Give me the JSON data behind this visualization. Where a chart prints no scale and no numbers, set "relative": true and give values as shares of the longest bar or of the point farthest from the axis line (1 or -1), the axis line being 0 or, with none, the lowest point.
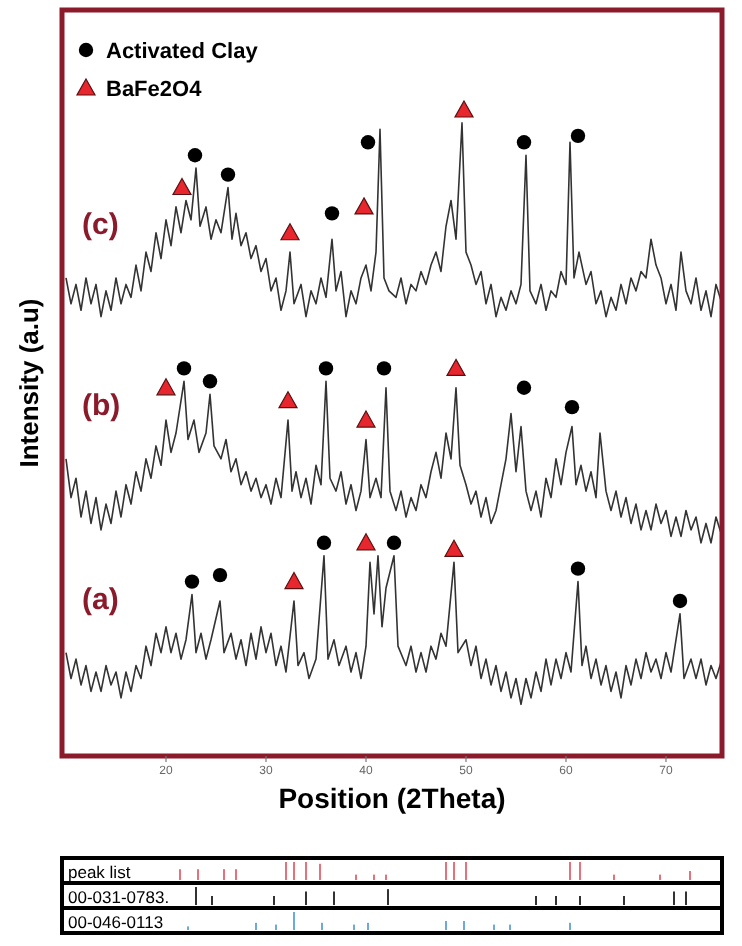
{
  "chart_data": [
    {
      "type": "line",
      "xlabel": "Position (2Theta)",
      "ylabel": "Intensity (a.u)",
      "relative": true,
      "xlim": [
        9.6,
        75.6
      ],
      "xticks": [
        20,
        30,
        40,
        50,
        60,
        70
      ],
      "grid": false,
      "legend": "top left",
      "line_style": "solid",
      "series": [
        {
          "name": "(c)",
          "color": "#333333",
          "marker": "none",
          "x": [
            10,
            10.5,
            11,
            11.5,
            12,
            12.5,
            13,
            13.5,
            14,
            14.5,
            15,
            15.5,
            16,
            16.5,
            17,
            17.5,
            18,
            18.5,
            19,
            19.5,
            20,
            20.5,
            21,
            21.5,
            22,
            22.5,
            23,
            23.4,
            24,
            24.5,
            25,
            25.5,
            26.2,
            26.6,
            27,
            27.5,
            28,
            28.5,
            29,
            29.5,
            30,
            30.5,
            31,
            31.5,
            32,
            32.4,
            32.8,
            33.5,
            34,
            34.5,
            35,
            35.5,
            36,
            36.6,
            37,
            37.5,
            38,
            38.5,
            39,
            39.5,
            40,
            40.5,
            41,
            41.4,
            41.8,
            42.3,
            43,
            43.5,
            44,
            44.5,
            45,
            45.5,
            46,
            46.5,
            47,
            47.5,
            48,
            48.5,
            49,
            49.6,
            50,
            50.5,
            51,
            51.5,
            52,
            52.5,
            53,
            53.5,
            54,
            54.5,
            55,
            55.5,
            56,
            56.4,
            57,
            57.5,
            58,
            58.5,
            59,
            59.5,
            60,
            60.4,
            60.8,
            61.3,
            62,
            62.5,
            63,
            63.5,
            64,
            64.5,
            65,
            65.5,
            66,
            66.5,
            67,
            67.5,
            68,
            68.5,
            69,
            69.5,
            70,
            70.5,
            71,
            71.5,
            72,
            72.5,
            73,
            73.5,
            74,
            74.5,
            75,
            75.6
          ],
          "values": [
            0.74,
            0.7,
            0.73,
            0.69,
            0.74,
            0.7,
            0.73,
            0.68,
            0.72,
            0.69,
            0.74,
            0.7,
            0.73,
            0.71,
            0.76,
            0.72,
            0.78,
            0.75,
            0.81,
            0.77,
            0.83,
            0.79,
            0.85,
            0.81,
            0.86,
            0.83,
            0.91,
            0.82,
            0.85,
            0.8,
            0.83,
            0.81,
            0.88,
            0.8,
            0.84,
            0.79,
            0.81,
            0.77,
            0.79,
            0.75,
            0.77,
            0.72,
            0.74,
            0.69,
            0.72,
            0.78,
            0.7,
            0.73,
            0.68,
            0.72,
            0.7,
            0.74,
            0.71,
            0.8,
            0.72,
            0.75,
            0.68,
            0.72,
            0.7,
            0.74,
            0.76,
            0.72,
            0.78,
            0.97,
            0.74,
            0.72,
            0.71,
            0.74,
            0.7,
            0.73,
            0.72,
            0.75,
            0.73,
            0.76,
            0.78,
            0.75,
            0.82,
            0.86,
            0.8,
            0.98,
            0.78,
            0.76,
            0.73,
            0.75,
            0.7,
            0.73,
            0.68,
            0.71,
            0.69,
            0.72,
            0.7,
            0.73,
            0.93,
            0.72,
            0.7,
            0.73,
            0.69,
            0.72,
            0.71,
            0.75,
            0.73,
            0.95,
            0.74,
            0.78,
            0.73,
            0.75,
            0.7,
            0.72,
            0.68,
            0.71,
            0.69,
            0.73,
            0.7,
            0.74,
            0.72,
            0.75,
            0.74,
            0.8,
            0.76,
            0.74,
            0.7,
            0.73,
            0.69,
            0.78,
            0.72,
            0.7,
            0.74,
            0.69,
            0.72,
            0.68,
            0.73,
            0.7
          ]
        },
        {
          "name": "(b)",
          "color": "#333333",
          "marker": "none",
          "x": [
            10,
            10.5,
            11,
            11.5,
            12,
            12.5,
            13,
            13.5,
            14,
            14.5,
            15,
            15.5,
            16,
            16.5,
            17,
            17.5,
            18,
            18.5,
            19,
            19.5,
            20,
            20.5,
            21,
            21.8,
            22.2,
            22.8,
            23.3,
            24,
            24.4,
            24.8,
            25.5,
            26,
            26.5,
            27,
            27.5,
            28,
            28.5,
            29,
            29.5,
            30,
            30.5,
            31,
            31.5,
            32.2,
            32.6,
            33,
            33.5,
            34,
            34.5,
            35,
            35.5,
            36,
            36.4,
            37,
            37.5,
            38,
            38.5,
            39,
            39.5,
            40,
            40.4,
            41,
            41.5,
            42,
            42.4,
            43,
            43.5,
            44,
            44.5,
            45,
            45.5,
            46,
            46.5,
            47,
            47.5,
            48,
            48.5,
            49,
            49.4,
            50,
            50.5,
            51,
            51.5,
            52,
            52.5,
            53,
            53.5,
            54,
            54.5,
            55,
            55.5,
            56,
            56.5,
            57,
            57.5,
            58,
            58.5,
            59,
            59.5,
            60,
            60.6,
            61,
            61.5,
            62,
            62.5,
            63,
            63.4,
            64,
            64.5,
            65,
            65.5,
            66,
            66.5,
            67,
            67.5,
            68,
            68.5,
            69,
            69.5,
            70,
            70.5,
            71,
            71.5,
            72,
            72.5,
            73,
            73.5,
            74,
            74.5,
            75,
            75.6
          ],
          "values": [
            0.46,
            0.4,
            0.43,
            0.37,
            0.41,
            0.36,
            0.4,
            0.35,
            0.39,
            0.36,
            0.41,
            0.37,
            0.42,
            0.39,
            0.44,
            0.41,
            0.46,
            0.43,
            0.48,
            0.45,
            0.52,
            0.47,
            0.5,
            0.58,
            0.49,
            0.52,
            0.47,
            0.5,
            0.56,
            0.48,
            0.46,
            0.49,
            0.44,
            0.46,
            0.42,
            0.44,
            0.41,
            0.43,
            0.4,
            0.42,
            0.39,
            0.43,
            0.4,
            0.52,
            0.41,
            0.44,
            0.4,
            0.43,
            0.39,
            0.45,
            0.42,
            0.58,
            0.43,
            0.41,
            0.44,
            0.39,
            0.42,
            0.38,
            0.41,
            0.49,
            0.4,
            0.43,
            0.4,
            0.57,
            0.41,
            0.38,
            0.41,
            0.37,
            0.4,
            0.38,
            0.42,
            0.4,
            0.44,
            0.47,
            0.43,
            0.5,
            0.46,
            0.57,
            0.45,
            0.42,
            0.39,
            0.41,
            0.37,
            0.4,
            0.36,
            0.38,
            0.42,
            0.46,
            0.53,
            0.44,
            0.51,
            0.41,
            0.38,
            0.41,
            0.37,
            0.43,
            0.4,
            0.46,
            0.42,
            0.47,
            0.51,
            0.42,
            0.45,
            0.41,
            0.44,
            0.4,
            0.5,
            0.41,
            0.38,
            0.41,
            0.37,
            0.4,
            0.36,
            0.39,
            0.35,
            0.38,
            0.35,
            0.39,
            0.36,
            0.38,
            0.34,
            0.37,
            0.34,
            0.38,
            0.35,
            0.37,
            0.33,
            0.36,
            0.33,
            0.37,
            0.34
          ]
        },
        {
          "name": "(a)",
          "color": "#333333",
          "marker": "none",
          "x": [
            10,
            10.5,
            11,
            11.5,
            12,
            12.5,
            13,
            13.5,
            14,
            14.5,
            15,
            15.5,
            16,
            16.5,
            17,
            17.5,
            18,
            18.5,
            19,
            19.5,
            20,
            20.5,
            21,
            21.5,
            22,
            22.6,
            23,
            23.5,
            24,
            24.5,
            25.4,
            25.8,
            26.5,
            27,
            27.5,
            28,
            28.5,
            29,
            29.5,
            30,
            30.5,
            31,
            31.5,
            32,
            32.8,
            33.2,
            33.8,
            34.3,
            35,
            35.8,
            36.2,
            36.8,
            37.3,
            38,
            38.5,
            39,
            39.5,
            40,
            40.4,
            40.8,
            41.2,
            41.6,
            42,
            42.8,
            43.2,
            44,
            44.5,
            45,
            45.5,
            46,
            46.5,
            47,
            47.5,
            48,
            48.8,
            49.2,
            50,
            50.5,
            51,
            51.5,
            52,
            52.5,
            53,
            53.5,
            54,
            54.5,
            55,
            55.5,
            56,
            56.5,
            57,
            57.5,
            58,
            58.5,
            59,
            59.5,
            60,
            60.5,
            61.2,
            61.6,
            62,
            62.5,
            63,
            63.5,
            64,
            64.5,
            65,
            65.5,
            66,
            66.5,
            67,
            67.5,
            68,
            68.5,
            69,
            69.5,
            70,
            70.5,
            71.4,
            71.8,
            72.5,
            73,
            73.5,
            74,
            74.5,
            75,
            75.6
          ],
          "values": [
            0.16,
            0.12,
            0.15,
            0.11,
            0.14,
            0.1,
            0.13,
            0.1,
            0.14,
            0.11,
            0.13,
            0.09,
            0.13,
            0.1,
            0.14,
            0.12,
            0.17,
            0.14,
            0.19,
            0.16,
            0.2,
            0.16,
            0.19,
            0.15,
            0.18,
            0.25,
            0.16,
            0.19,
            0.15,
            0.18,
            0.24,
            0.16,
            0.19,
            0.15,
            0.18,
            0.14,
            0.19,
            0.15,
            0.2,
            0.16,
            0.19,
            0.14,
            0.17,
            0.13,
            0.24,
            0.14,
            0.16,
            0.12,
            0.15,
            0.31,
            0.15,
            0.18,
            0.14,
            0.17,
            0.13,
            0.16,
            0.12,
            0.17,
            0.3,
            0.22,
            0.31,
            0.2,
            0.26,
            0.31,
            0.17,
            0.14,
            0.17,
            0.13,
            0.16,
            0.13,
            0.17,
            0.15,
            0.19,
            0.17,
            0.3,
            0.16,
            0.18,
            0.14,
            0.17,
            0.12,
            0.15,
            0.11,
            0.14,
            0.1,
            0.13,
            0.09,
            0.12,
            0.08,
            0.12,
            0.09,
            0.13,
            0.1,
            0.15,
            0.11,
            0.15,
            0.12,
            0.16,
            0.13,
            0.27,
            0.14,
            0.17,
            0.12,
            0.15,
            0.11,
            0.14,
            0.1,
            0.13,
            0.09,
            0.14,
            0.11,
            0.15,
            0.12,
            0.16,
            0.13,
            0.15,
            0.12,
            0.16,
            0.13,
            0.22,
            0.12,
            0.15,
            0.12,
            0.15,
            0.11,
            0.14,
            0.12,
            0.15
          ]
        },
        {
          "name": "Activated Clay",
          "type": "scatter",
          "color": "#000000",
          "marker": "circle",
          "x": [
            22.9,
            26.2,
            36.6,
            40.2,
            55.8,
            61.2,
            21.8,
            24.4,
            36.0,
            41.8,
            55.8,
            60.6,
            35.8,
            42.8,
            22.6,
            25.4,
            61.2,
            71.4
          ],
          "values": [
            0.93,
            0.9,
            0.84,
            0.95,
            0.95,
            0.96,
            0.6,
            0.58,
            0.6,
            0.6,
            0.57,
            0.54,
            0.33,
            0.33,
            0.27,
            0.28,
            0.29,
            0.24
          ]
        },
        {
          "name": "BaFe2O4",
          "type": "scatter",
          "color": "#e8262e",
          "marker": "triangle",
          "x": [
            21.6,
            32.4,
            39.8,
            49.8,
            20.0,
            32.2,
            40.0,
            49.0,
            40.0,
            48.8,
            32.8
          ],
          "values": [
            0.88,
            0.81,
            0.85,
            1,
            0.57,
            0.55,
            0.52,
            0.6,
            0.33,
            0.32,
            0.27
          ]
        }
      ]
    },
    {
      "type": "bar",
      "relative": true,
      "xlim": [
        9.6,
        75.6
      ],
      "tick_labels": false,
      "series": [
        {
          "name": "peak list",
          "color": "#e8707a",
          "x": [
            21.4,
            23.2,
            25.8,
            27,
            32,
            32.8,
            34,
            35.4,
            39,
            40.8,
            42,
            48,
            48.8,
            50,
            60.4,
            61.4,
            64.8,
            69.4,
            72.4
          ],
          "values": [
            0.6,
            0.6,
            0.6,
            0.6,
            1,
            1,
            1,
            0.9,
            0.3,
            0.3,
            0.3,
            1,
            1,
            1,
            1,
            1,
            0.3,
            0.3,
            0.5
          ]
        }
      ]
    },
    {
      "type": "bar",
      "relative": true,
      "xlim": [
        9.6,
        75.6
      ],
      "tick_labels": false,
      "series": [
        {
          "name": "00-031-0783.",
          "color": "#333333",
          "x": [
            23,
            24.6,
            30.8,
            34,
            36.8,
            42.2,
            57,
            59,
            61.4,
            65.8,
            70.8,
            72
          ],
          "values": [
            1,
            0.5,
            0.5,
            0.75,
            0.75,
            0.88,
            0.5,
            0.5,
            0.5,
            0.5,
            0.75,
            0.75
          ]
        }
      ]
    },
    {
      "type": "bar",
      "relative": true,
      "xlim": [
        9.6,
        75.6
      ],
      "tick_labels": false,
      "series": [
        {
          "name": "00-046-0113",
          "color": "#6fa8dc",
          "x": [
            22.2,
            29,
            31,
            32.8,
            35.6,
            38.8,
            40.2,
            48,
            49.8,
            52.8,
            54.4,
            60.4
          ],
          "values": [
            0.2,
            0.4,
            0.3,
            1,
            0.4,
            0.3,
            0.4,
            0.5,
            0.5,
            0.3,
            0.3,
            0.4
          ]
        }
      ]
    }
  ]
}
